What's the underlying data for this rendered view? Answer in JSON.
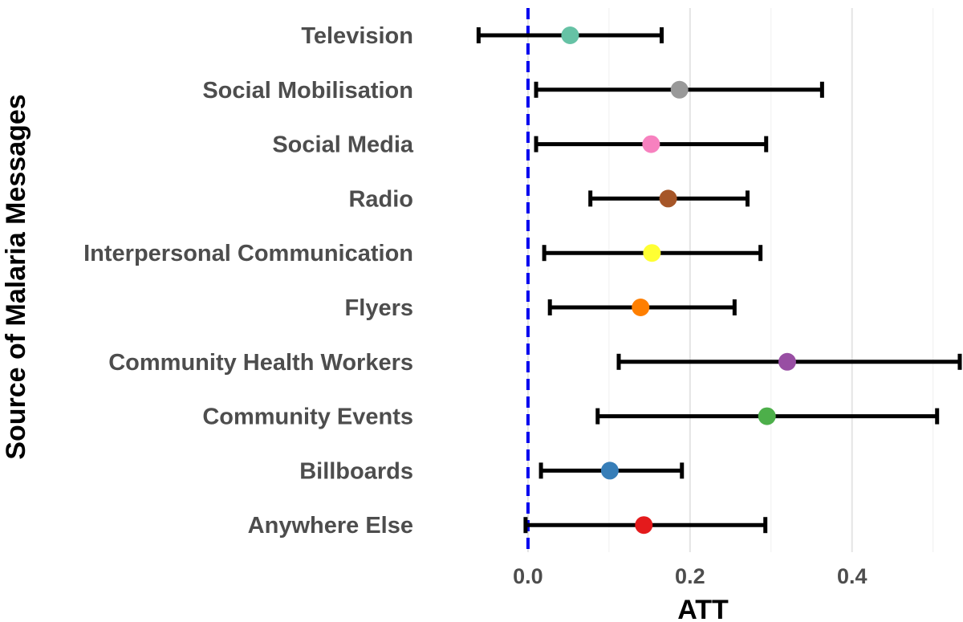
{
  "chart_data": {
    "type": "dot-errorbar",
    "xlabel": "ATT",
    "ylabel": "Source of Malaria Messages",
    "xlim": [
      -0.1,
      0.535
    ],
    "xticks": [
      0.0,
      0.2,
      0.4
    ],
    "xtick_labels": [
      "0.0",
      "0.2",
      "0.4"
    ],
    "minor_gridlines": [
      0.1,
      0.3,
      0.5
    ],
    "grid": "vertical",
    "reference_line": {
      "x": 0.0,
      "style": "dashed",
      "color": "#0000ee"
    },
    "categories": [
      "Television",
      "Social Mobilisation",
      "Social Media",
      "Radio",
      "Interpersonal Communication",
      "Flyers",
      "Community Health Workers",
      "Community Events",
      "Billboards",
      "Anywhere Else"
    ],
    "estimates": [
      0.052,
      0.187,
      0.152,
      0.173,
      0.153,
      0.139,
      0.32,
      0.295,
      0.101,
      0.143
    ],
    "ci_lower": [
      -0.061,
      0.01,
      0.01,
      0.077,
      0.02,
      0.027,
      0.112,
      0.086,
      0.016,
      -0.003
    ],
    "ci_upper": [
      0.165,
      0.363,
      0.294,
      0.271,
      0.287,
      0.255,
      0.533,
      0.505,
      0.19,
      0.293
    ],
    "colors": [
      "#66c2a5",
      "#999999",
      "#f781bf",
      "#a65628",
      "#ffff33",
      "#ff7f00",
      "#984ea3",
      "#4daf4a",
      "#377eb8",
      "#e41a1c"
    ]
  }
}
